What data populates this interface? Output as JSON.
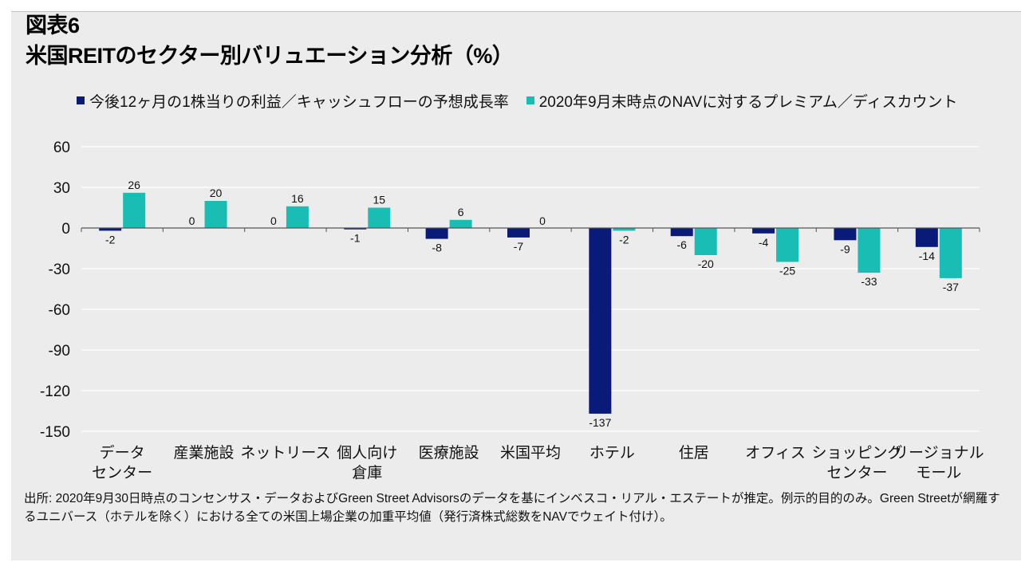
{
  "figure_label": "図表6",
  "colors": {
    "series1": "#0a1a78",
    "series2": "#19bdb4",
    "grid": "#ffffff",
    "axis": "#555555"
  },
  "chart_data": {
    "type": "bar",
    "title": "米国REITのセクター別バリュエーション分析（%）",
    "categories": [
      [
        "データ",
        "センター"
      ],
      [
        "産業施設"
      ],
      [
        "ネットリース"
      ],
      [
        "個人向け",
        "倉庫"
      ],
      [
        "医療施設"
      ],
      [
        "米国平均"
      ],
      [
        "ホテル"
      ],
      [
        "住居"
      ],
      [
        "オフィス"
      ],
      [
        "ショッピング",
        "センター"
      ],
      [
        "リージョナル",
        "モール"
      ]
    ],
    "series": [
      {
        "name": "今後12ヶ月の1株当りの利益／キャッシュフローの予想成長率",
        "values": [
          -2,
          0,
          0,
          -1,
          -8,
          -7,
          -137,
          -6,
          -4,
          -9,
          -14
        ]
      },
      {
        "name": "2020年9月末時点のNAVに対するプレミアム／ディスカウント",
        "values": [
          26,
          20,
          16,
          15,
          6,
          0,
          -2,
          -20,
          -25,
          -33,
          -37
        ]
      }
    ],
    "yticks": [
      60,
      30,
      0,
      -30,
      -60,
      -90,
      -120,
      -150
    ],
    "ylim": [
      -150,
      60
    ],
    "xlabel": "",
    "ylabel": "",
    "legend_position": "top"
  },
  "source_note": "出所: 2020年9月30日時点のコンセンサス・データおよびGreen Street Advisorsのデータを基にインベスコ・リアル・エステートが推定。例示的目的のみ。Green Streetが網羅するユニバース（ホテルを除く）における全ての米国上場企業の加重平均値（発行済株式総数をNAVでウェイト付け）。"
}
